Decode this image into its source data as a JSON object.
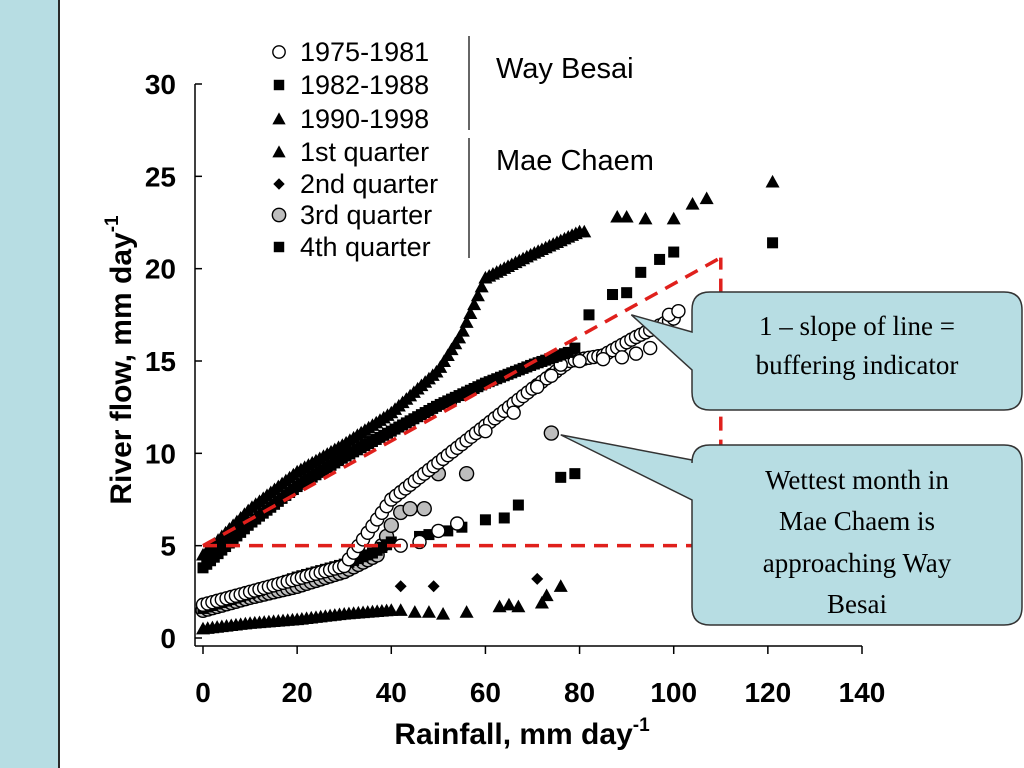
{
  "chart_data": {
    "type": "scatter",
    "xlabel": "Rainfall, mm day",
    "xlabel_sup": "-1",
    "ylabel": "River flow, mm day",
    "ylabel_sup": "-1",
    "xlim": [
      0,
      140
    ],
    "ylim": [
      0,
      30
    ],
    "xticks": [
      0,
      20,
      40,
      60,
      80,
      100,
      120,
      140
    ],
    "yticks": [
      0,
      5,
      10,
      15,
      20,
      25,
      30
    ],
    "grid": false,
    "legend_groups": [
      {
        "name": "Way Besai",
        "entries": [
          {
            "label": "1975-1981",
            "marker": "circle-open"
          },
          {
            "label": "1982-1988",
            "marker": "square"
          },
          {
            "label": "1990-1998",
            "marker": "triangle"
          }
        ]
      },
      {
        "name": "Mae Chaem",
        "entries": [
          {
            "label": "1st quarter",
            "marker": "triangle"
          },
          {
            "label": "2nd quarter",
            "marker": "diamond"
          },
          {
            "label": "3rd quarter",
            "marker": "circle-gray"
          },
          {
            "label": "4th quarter",
            "marker": "square"
          }
        ]
      }
    ],
    "series": [
      {
        "name": "1975-1981",
        "marker": "circle-open",
        "curve": [
          [
            0,
            1.8
          ],
          [
            10,
            2.5
          ],
          [
            20,
            3.2
          ],
          [
            30,
            3.9
          ],
          [
            40,
            7.5
          ],
          [
            50,
            9.5
          ],
          [
            60,
            11.5
          ],
          [
            70,
            13.5
          ],
          [
            78,
            15
          ],
          [
            85,
            15.3
          ],
          [
            92,
            16.3
          ],
          [
            100,
            17.3
          ]
        ],
        "points": [
          [
            42,
            5.0
          ],
          [
            46,
            5.2
          ],
          [
            50,
            5.8
          ],
          [
            54,
            6.2
          ],
          [
            60,
            11.2
          ],
          [
            66,
            12.2
          ],
          [
            71,
            13.6
          ],
          [
            74,
            14.2
          ],
          [
            76,
            14.8
          ],
          [
            80,
            15.0
          ],
          [
            85,
            15.1
          ],
          [
            89,
            15.2
          ],
          [
            92,
            15.4
          ],
          [
            95,
            15.7
          ],
          [
            97,
            16.6
          ],
          [
            99,
            17.5
          ],
          [
            101,
            17.7
          ]
        ]
      },
      {
        "name": "1982-1988",
        "marker": "square",
        "curve": [
          [
            0,
            3.8
          ],
          [
            10,
            6.2
          ],
          [
            20,
            8.2
          ],
          [
            30,
            9.8
          ],
          [
            40,
            11.2
          ],
          [
            50,
            12.6
          ],
          [
            60,
            13.8
          ],
          [
            70,
            14.8
          ],
          [
            78,
            15.5
          ]
        ],
        "points": []
      },
      {
        "name": "1990-1998",
        "marker": "triangle",
        "curve": [
          [
            0,
            4.5
          ],
          [
            10,
            7.0
          ],
          [
            20,
            9.0
          ],
          [
            30,
            10.5
          ],
          [
            40,
            12.2
          ],
          [
            50,
            14.5
          ],
          [
            55,
            16.5
          ],
          [
            60,
            19.5
          ],
          [
            70,
            20.8
          ],
          [
            80,
            22.0
          ]
        ],
        "points": [
          [
            81,
            22.0
          ],
          [
            88,
            22.8
          ],
          [
            90,
            22.8
          ],
          [
            94,
            22.7
          ],
          [
            100,
            22.7
          ],
          [
            104,
            23.5
          ],
          [
            107,
            23.8
          ],
          [
            121,
            24.7
          ]
        ]
      },
      {
        "name": "1st quarter",
        "marker": "triangle",
        "curve": [
          [
            0,
            0.5
          ],
          [
            10,
            0.8
          ],
          [
            20,
            1.0
          ],
          [
            30,
            1.3
          ],
          [
            40,
            1.5
          ]
        ],
        "points": [
          [
            42,
            1.5
          ],
          [
            45,
            1.4
          ],
          [
            48,
            1.4
          ],
          [
            51,
            1.3
          ],
          [
            56,
            1.4
          ],
          [
            63,
            1.7
          ],
          [
            65,
            1.8
          ],
          [
            67,
            1.7
          ],
          [
            72,
            1.9
          ],
          [
            73,
            2.3
          ],
          [
            76,
            2.8
          ]
        ]
      },
      {
        "name": "2nd quarter",
        "marker": "diamond",
        "curve": [],
        "points": [
          [
            42,
            2.8
          ],
          [
            49,
            2.8
          ],
          [
            71,
            3.2
          ]
        ]
      },
      {
        "name": "3rd quarter",
        "marker": "circle-gray",
        "curve": [
          [
            0,
            1.5
          ],
          [
            10,
            2.2
          ],
          [
            20,
            2.8
          ],
          [
            30,
            3.6
          ],
          [
            37,
            4.5
          ],
          [
            39,
            5.5
          ]
        ],
        "points": [
          [
            40,
            6.1
          ],
          [
            42,
            6.8
          ],
          [
            44,
            7.0
          ],
          [
            47,
            7.0
          ],
          [
            50,
            8.9
          ],
          [
            56,
            8.9
          ],
          [
            74,
            11.1
          ]
        ]
      },
      {
        "name": "4th quarter",
        "marker": "square",
        "curve": [
          [
            0,
            1.6
          ],
          [
            10,
            2.4
          ],
          [
            20,
            3.3
          ],
          [
            30,
            4.0
          ],
          [
            36,
            4.6
          ],
          [
            40,
            5.2
          ]
        ],
        "points": [
          [
            46,
            5.5
          ],
          [
            48,
            5.6
          ],
          [
            52,
            5.8
          ],
          [
            55,
            6.0
          ],
          [
            60,
            6.4
          ],
          [
            64,
            6.5
          ],
          [
            67,
            7.2
          ],
          [
            76,
            8.7
          ],
          [
            79,
            8.9
          ],
          [
            79,
            15.7
          ],
          [
            82,
            17.5
          ],
          [
            87,
            18.6
          ],
          [
            90,
            18.7
          ],
          [
            93,
            19.8
          ],
          [
            97,
            20.5
          ],
          [
            100,
            20.9
          ],
          [
            121,
            21.4
          ]
        ]
      }
    ],
    "annotations": {
      "dashed_color": "#e0201c",
      "slope_line": [
        [
          0,
          5
        ],
        [
          110,
          20.6
        ]
      ],
      "horizontal_line": [
        [
          0,
          5
        ],
        [
          110,
          5
        ]
      ],
      "vertical_line": [
        [
          110,
          5
        ],
        [
          110,
          20.6
        ]
      ]
    },
    "callouts": [
      {
        "lines": [
          "1 – slope of line =",
          "buffering indicator"
        ],
        "pointer_to": [
          91,
          17.5
        ]
      },
      {
        "lines": [
          "Wettest month in",
          "Mae Chaem is",
          "approaching Way",
          "Besai"
        ],
        "pointer_to": [
          76,
          11.0
        ]
      }
    ],
    "colors": {
      "callout_fill": "#b7dde3",
      "callout_stroke": "#333333",
      "band": "#b7dde3"
    }
  }
}
